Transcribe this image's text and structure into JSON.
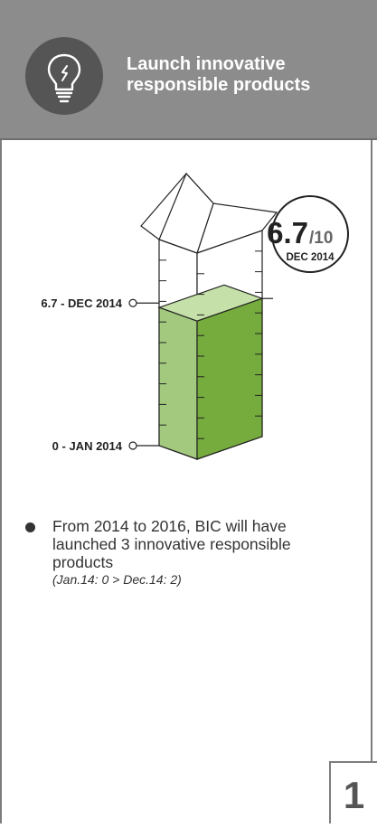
{
  "header": {
    "title_line1": "Launch innovative",
    "title_line2": "responsible products",
    "icon": "lightbulb-icon"
  },
  "chart_data": {
    "type": "bar",
    "current_value": 6.7,
    "max_value": 10,
    "value_label": "6.7",
    "max_label": "/10",
    "date_label": "DEC 2014",
    "markers": [
      {
        "label": "6.7 - DEC 2014",
        "value": 6.7
      },
      {
        "label": "0 - JAN 2014",
        "value": 0
      }
    ],
    "ylim": [
      0,
      10
    ]
  },
  "note": {
    "text": "From 2014 to 2016, BIC will have launched 3 innovative responsible products",
    "sub": "(Jan.14: 0 > Dec.14: 2)"
  },
  "page": {
    "number": "1"
  },
  "colors": {
    "header_bg": "#8c8c8c",
    "fill_light": "#a2c97e",
    "fill_dark": "#76ab3d",
    "fill_top": "#c5e0a8"
  }
}
